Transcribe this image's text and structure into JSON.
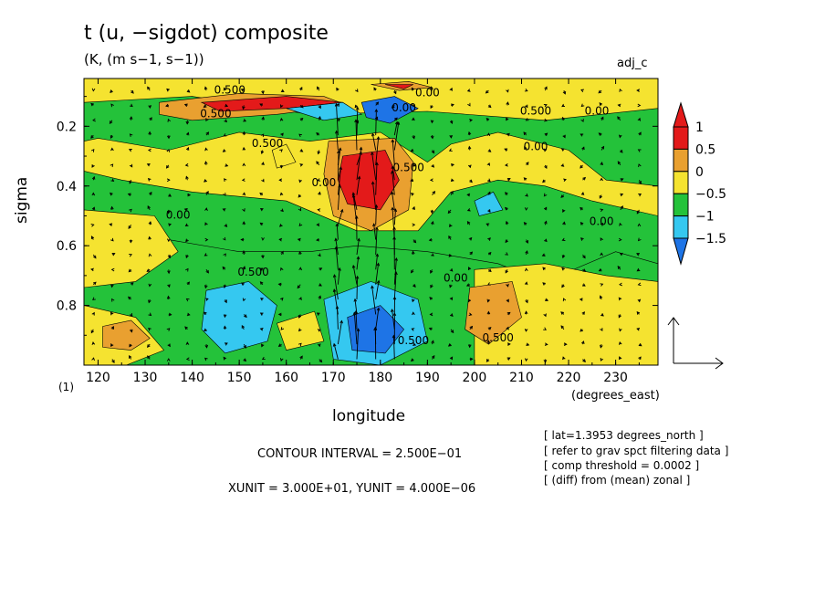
{
  "header": {
    "title": "t (u, −sigdot) composite",
    "subtitle": "(K, (m s−1, s−1))",
    "tag": "adj_c",
    "page_num": "(1)"
  },
  "footer": {
    "contour_interval": "CONTOUR INTERVAL = 2.500E−01",
    "vector_scale": "XUNIT = 3.000E+01, YUNIT = 4.000E−06",
    "notes": [
      "[ lat=1.3953 degrees_north ]",
      "[ refer to grav spct filtering data ]",
      "[ comp threshold = 0.0002 ]",
      "[ (diff) from (mean) zonal ]"
    ]
  },
  "colors": {
    "le_-1.5": "#1e74e6",
    "-1.5_-1": "#35c8f0",
    "-1_-0.5": "#24c23a",
    "-0.5_0": "#24c23a",
    "0_0.5": "#f5e330",
    "0.5_1": "#e9a030",
    "ge_1": "#e31a1a"
  },
  "chart_data": {
    "type": "heatmap",
    "title": "t (u, −sigdot) composite",
    "xlabel": "longitude",
    "ylabel": "sigma",
    "x_unit_label": "(degrees_east)",
    "xlim": [
      117,
      239
    ],
    "ylim": [
      1.0,
      0.04
    ],
    "x_ticks": [
      120,
      130,
      140,
      150,
      160,
      170,
      180,
      190,
      200,
      210,
      220,
      230
    ],
    "y_ticks": [
      0.2,
      0.4,
      0.6,
      0.8
    ],
    "colorbar": {
      "ticks": [
        "1",
        "0.5",
        "0",
        "−0.5",
        "−1",
        "−1.5"
      ],
      "colors": [
        "#e31a1a",
        "#e9a030",
        "#f5e330",
        "#24c23a",
        "#35c8f0",
        "#1e74e6"
      ]
    },
    "contour_labels": [
      {
        "text": "0.500",
        "x": 148,
        "y": 0.09
      },
      {
        "text": "0.00",
        "x": 190,
        "y": 0.1
      },
      {
        "text": "0.500",
        "x": 213,
        "y": 0.16
      },
      {
        "text": "0.00",
        "x": 226,
        "y": 0.16
      },
      {
        "text": "0.00",
        "x": 185,
        "y": 0.15
      },
      {
        "text": "0.500",
        "x": 145,
        "y": 0.17
      },
      {
        "text": "0.500",
        "x": 156,
        "y": 0.27
      },
      {
        "text": "0.00",
        "x": 213,
        "y": 0.28
      },
      {
        "text": "0.00",
        "x": 137,
        "y": 0.51
      },
      {
        "text": "0.00",
        "x": 168,
        "y": 0.4
      },
      {
        "text": "0.500",
        "x": 186,
        "y": 0.35
      },
      {
        "text": "0.00",
        "x": 227,
        "y": 0.53
      },
      {
        "text": "0.500",
        "x": 153,
        "y": 0.7
      },
      {
        "text": "0.00",
        "x": 196,
        "y": 0.72
      },
      {
        "text": "0.500",
        "x": 205,
        "y": 0.92
      },
      {
        "text": "0.500",
        "x": 187,
        "y": 0.93
      }
    ],
    "regions": [
      {
        "level": "0_0.5",
        "points": [
          [
            117,
            0.04
          ],
          [
            239,
            0.04
          ],
          [
            239,
            0.5
          ],
          [
            225,
            0.45
          ],
          [
            215,
            0.4
          ],
          [
            205,
            0.38
          ],
          [
            195,
            0.42
          ],
          [
            188,
            0.55
          ],
          [
            175,
            0.55
          ],
          [
            160,
            0.45
          ],
          [
            140,
            0.42
          ],
          [
            125,
            0.38
          ],
          [
            117,
            0.35
          ]
        ]
      },
      {
        "level": "-1_-0.5",
        "points": [
          [
            117,
            0.12
          ],
          [
            140,
            0.1
          ],
          [
            165,
            0.16
          ],
          [
            190,
            0.15
          ],
          [
            215,
            0.18
          ],
          [
            239,
            0.14
          ],
          [
            239,
            0.4
          ],
          [
            228,
            0.38
          ],
          [
            220,
            0.28
          ],
          [
            205,
            0.22
          ],
          [
            195,
            0.26
          ],
          [
            190,
            0.32
          ],
          [
            180,
            0.22
          ],
          [
            165,
            0.25
          ],
          [
            150,
            0.22
          ],
          [
            135,
            0.28
          ],
          [
            120,
            0.24
          ],
          [
            117,
            0.25
          ]
        ]
      },
      {
        "level": "-1_-0.5",
        "points": [
          [
            117,
            0.55
          ],
          [
            135,
            0.58
          ],
          [
            150,
            0.62
          ],
          [
            165,
            0.62
          ],
          [
            175,
            0.6
          ],
          [
            190,
            0.62
          ],
          [
            205,
            0.66
          ],
          [
            215,
            0.72
          ],
          [
            230,
            0.62
          ],
          [
            239,
            0.66
          ],
          [
            239,
            1.0
          ],
          [
            117,
            1.0
          ]
        ]
      },
      {
        "level": "0_0.5",
        "points": [
          [
            200,
            0.68
          ],
          [
            215,
            0.66
          ],
          [
            228,
            0.7
          ],
          [
            239,
            0.72
          ],
          [
            239,
            1.0
          ],
          [
            200,
            1.0
          ]
        ]
      },
      {
        "level": "0_0.5",
        "points": [
          [
            117,
            0.48
          ],
          [
            132,
            0.5
          ],
          [
            137,
            0.62
          ],
          [
            128,
            0.72
          ],
          [
            117,
            0.74
          ]
        ]
      },
      {
        "level": "0_0.5",
        "points": [
          [
            117,
            0.8
          ],
          [
            128,
            0.84
          ],
          [
            134,
            0.95
          ],
          [
            126,
            1.0
          ],
          [
            117,
            1.0
          ]
        ]
      },
      {
        "level": "0.5_1",
        "points": [
          [
            121,
            0.87
          ],
          [
            127,
            0.85
          ],
          [
            131,
            0.91
          ],
          [
            127,
            0.95
          ],
          [
            121,
            0.94
          ]
        ]
      },
      {
        "level": "0.5_1",
        "points": [
          [
            199,
            0.74
          ],
          [
            208,
            0.72
          ],
          [
            210,
            0.84
          ],
          [
            203,
            0.93
          ],
          [
            198,
            0.88
          ]
        ]
      },
      {
        "level": "0_0.5",
        "points": [
          [
            158,
            0.86
          ],
          [
            166,
            0.82
          ],
          [
            168,
            0.92
          ],
          [
            160,
            0.95
          ]
        ]
      },
      {
        "level": "0_0.5",
        "points": [
          [
            157,
            0.28
          ],
          [
            160,
            0.26
          ],
          [
            162,
            0.32
          ],
          [
            158,
            0.34
          ]
        ]
      },
      {
        "level": "-1.5_-1",
        "points": [
          [
            143,
            0.75
          ],
          [
            152,
            0.72
          ],
          [
            158,
            0.8
          ],
          [
            156,
            0.92
          ],
          [
            147,
            0.96
          ],
          [
            142,
            0.88
          ]
        ]
      },
      {
        "level": "-1.5_-1",
        "points": [
          [
            168,
            0.78
          ],
          [
            178,
            0.72
          ],
          [
            188,
            0.78
          ],
          [
            190,
            0.92
          ],
          [
            180,
            1.0
          ],
          [
            170,
            0.98
          ]
        ]
      },
      {
        "level": "le_-1.5",
        "points": [
          [
            173,
            0.84
          ],
          [
            180,
            0.8
          ],
          [
            185,
            0.88
          ],
          [
            181,
            0.96
          ],
          [
            174,
            0.95
          ]
        ]
      },
      {
        "level": "-1.5_-1",
        "points": [
          [
            200,
            0.45
          ],
          [
            204,
            0.42
          ],
          [
            206,
            0.48
          ],
          [
            201,
            0.5
          ]
        ]
      },
      {
        "level": "0.5_1",
        "points": [
          [
            169,
            0.25
          ],
          [
            183,
            0.24
          ],
          [
            187,
            0.32
          ],
          [
            186,
            0.48
          ],
          [
            178,
            0.55
          ],
          [
            170,
            0.5
          ],
          [
            168,
            0.36
          ]
        ]
      },
      {
        "level": "ge_1",
        "points": [
          [
            172,
            0.3
          ],
          [
            181,
            0.28
          ],
          [
            184,
            0.38
          ],
          [
            180,
            0.48
          ],
          [
            173,
            0.46
          ],
          [
            171,
            0.38
          ]
        ]
      },
      {
        "level": "0.5_1",
        "points": [
          [
            133,
            0.12
          ],
          [
            150,
            0.09
          ],
          [
            168,
            0.1
          ],
          [
            173,
            0.13
          ],
          [
            158,
            0.16
          ],
          [
            140,
            0.18
          ],
          [
            133,
            0.16
          ]
        ]
      },
      {
        "level": "ge_1",
        "points": [
          [
            142,
            0.12
          ],
          [
            160,
            0.1
          ],
          [
            172,
            0.12
          ],
          [
            160,
            0.14
          ],
          [
            146,
            0.15
          ]
        ]
      },
      {
        "level": "0.5_1",
        "points": [
          [
            178,
            0.06
          ],
          [
            186,
            0.05
          ],
          [
            191,
            0.07
          ],
          [
            184,
            0.08
          ]
        ]
      },
      {
        "level": "ge_1",
        "points": [
          [
            181,
            0.06
          ],
          [
            187,
            0.06
          ],
          [
            185,
            0.075
          ]
        ]
      },
      {
        "level": "le_-1.5",
        "points": [
          [
            176,
            0.12
          ],
          [
            183,
            0.1
          ],
          [
            188,
            0.14
          ],
          [
            182,
            0.19
          ],
          [
            177,
            0.17
          ]
        ]
      },
      {
        "level": "-1.5_-1",
        "points": [
          [
            160,
            0.14
          ],
          [
            172,
            0.12
          ],
          [
            176,
            0.16
          ],
          [
            168,
            0.18
          ]
        ]
      }
    ],
    "vector_scale": {
      "x_unit": 30,
      "y_unit": 4e-06
    }
  }
}
